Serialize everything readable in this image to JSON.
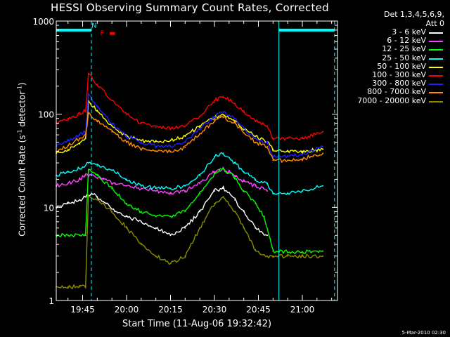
{
  "chart_data": {
    "type": "line",
    "title": "HESSI Observing Summary Count Rates, Corrected",
    "xlabel": "Start Time (11-Aug-06 19:32:42)",
    "ylabel": "Corrected Count Rate (s-1 detector-1)",
    "ylabel_parts": {
      "main": "Corrected Count Rate (s",
      "sup1": "-1",
      "mid": " detector",
      "sup2": "-1",
      "end": ")"
    },
    "y_scale": "log",
    "ylim": [
      1,
      1000
    ],
    "xlim": [
      "19:36",
      "21:12"
    ],
    "x_ticks": [
      "19:45",
      "20:00",
      "20:15",
      "20:30",
      "20:45",
      "21:00"
    ],
    "y_ticks": [
      "1",
      "10",
      "100",
      "1000"
    ],
    "legend_header": [
      "Det 1,3,4,5,6,9,",
      "Att 0"
    ],
    "legend_position": "right",
    "series": [
      {
        "name": "3 - 6 keV",
        "color": "#ffffff",
        "x": [
          "19:36",
          "19:40",
          "19:44",
          "19:46",
          "19:48",
          "19:50",
          "19:53",
          "19:56",
          "20:00",
          "20:05",
          "20:10",
          "20:15",
          "20:20",
          "20:25",
          "20:30",
          "20:33",
          "20:37",
          "20:40",
          "20:44",
          "20:48"
        ],
        "y": [
          10,
          11,
          12,
          13,
          14,
          13,
          11,
          9,
          8,
          7,
          6,
          5,
          6,
          9,
          15,
          16,
          12,
          9,
          6,
          5
        ]
      },
      {
        "name": "6 - 12 keV",
        "color": "#ff40ff",
        "x": [
          "19:36",
          "19:40",
          "19:44",
          "19:46",
          "19:48",
          "19:52",
          "19:56",
          "20:00",
          "20:05",
          "20:10",
          "20:15",
          "20:20",
          "20:25",
          "20:30",
          "20:33",
          "20:37",
          "20:40",
          "20:44",
          "20:48"
        ],
        "y": [
          17,
          18,
          20,
          22,
          22,
          20,
          18,
          17,
          16,
          15,
          14,
          15,
          18,
          24,
          26,
          22,
          19,
          17,
          15
        ]
      },
      {
        "name": "12 - 25 keV",
        "color": "#00ff00",
        "x": [
          "19:36",
          "19:40",
          "19:44",
          "19:46",
          "19:47",
          "19:50",
          "19:55",
          "20:00",
          "20:05",
          "20:10",
          "20:15",
          "20:20",
          "20:25",
          "20:30",
          "20:33",
          "20:37",
          "20:40",
          "20:44",
          "20:47",
          "20:50",
          "21:00",
          "21:07"
        ],
        "y": [
          5,
          5,
          5,
          5,
          25,
          22,
          16,
          11,
          9,
          8,
          8,
          9,
          14,
          23,
          26,
          21,
          15,
          11,
          8,
          3.4,
          3.3,
          3.4
        ]
      },
      {
        "name": "25 - 50 keV",
        "color": "#00ffff",
        "x": [
          "19:36",
          "19:40",
          "19:44",
          "19:47",
          "19:50",
          "19:55",
          "20:00",
          "20:05",
          "20:10",
          "20:15",
          "20:20",
          "20:25",
          "20:30",
          "20:33",
          "20:37",
          "20:40",
          "20:44",
          "20:48",
          "20:50",
          "20:55",
          "21:00",
          "21:07"
        ],
        "y": [
          22,
          24,
          26,
          30,
          28,
          25,
          20,
          17,
          16,
          16,
          17,
          22,
          35,
          38,
          30,
          24,
          20,
          18,
          14,
          14,
          15,
          17
        ]
      },
      {
        "name": "50 - 100 keV",
        "color": "#ffff00",
        "x": [
          "19:36",
          "19:40",
          "19:44",
          "19:46",
          "19:47",
          "19:50",
          "19:55",
          "20:00",
          "20:05",
          "20:10",
          "20:15",
          "20:20",
          "20:25",
          "20:30",
          "20:33",
          "20:37",
          "20:40",
          "20:44",
          "20:48",
          "20:50",
          "20:55",
          "21:00",
          "21:07"
        ],
        "y": [
          38,
          42,
          48,
          55,
          140,
          110,
          75,
          58,
          52,
          52,
          52,
          58,
          75,
          92,
          98,
          85,
          70,
          58,
          50,
          42,
          40,
          40,
          42
        ]
      },
      {
        "name": "100 - 300 keV",
        "color": "#ff0000",
        "x": [
          "19:36",
          "19:40",
          "19:44",
          "19:46",
          "19:47",
          "19:50",
          "19:55",
          "20:00",
          "20:05",
          "20:10",
          "20:15",
          "20:20",
          "20:25",
          "20:30",
          "20:33",
          "20:37",
          "20:40",
          "20:44",
          "20:48",
          "20:50",
          "20:55",
          "21:00",
          "21:07"
        ],
        "y": [
          80,
          90,
          100,
          110,
          270,
          210,
          140,
          100,
          80,
          72,
          70,
          74,
          95,
          140,
          155,
          130,
          105,
          85,
          75,
          55,
          55,
          55,
          65
        ]
      },
      {
        "name": "300 - 800 keV",
        "color": "#2020ff",
        "x": [
          "19:36",
          "19:40",
          "19:44",
          "19:46",
          "19:47",
          "19:50",
          "19:55",
          "20:00",
          "20:05",
          "20:10",
          "20:15",
          "20:20",
          "20:25",
          "20:30",
          "20:33",
          "20:37",
          "20:40",
          "20:44",
          "20:48",
          "20:50",
          "20:55",
          "21:00",
          "21:07"
        ],
        "y": [
          45,
          52,
          60,
          65,
          160,
          120,
          80,
          58,
          50,
          45,
          45,
          50,
          70,
          95,
          105,
          90,
          70,
          55,
          50,
          35,
          36,
          37,
          45
        ]
      },
      {
        "name": "800 - 7000 keV",
        "color": "#ff8c00",
        "x": [
          "19:36",
          "19:40",
          "19:44",
          "19:46",
          "19:47",
          "19:50",
          "19:55",
          "20:00",
          "20:05",
          "20:10",
          "20:15",
          "20:20",
          "20:25",
          "20:30",
          "20:33",
          "20:37",
          "20:40",
          "20:44",
          "20:48",
          "20:50",
          "20:55",
          "21:00",
          "21:07"
        ],
        "y": [
          40,
          46,
          55,
          60,
          100,
          85,
          65,
          50,
          42,
          40,
          40,
          44,
          62,
          85,
          92,
          80,
          63,
          50,
          45,
          32,
          32,
          33,
          38
        ]
      },
      {
        "name": "7000 - 20000 keV",
        "color": "#8b8b00",
        "x": [
          "19:36",
          "19:40",
          "19:44",
          "19:46",
          "19:47",
          "19:50",
          "19:55",
          "20:00",
          "20:05",
          "20:10",
          "20:15",
          "20:20",
          "20:25",
          "20:30",
          "20:33",
          "20:37",
          "20:40",
          "20:44",
          "20:48",
          "20:50",
          "20:55",
          "21:00",
          "21:07"
        ],
        "y": [
          1.4,
          1.4,
          1.4,
          1.4,
          13,
          12,
          9,
          6,
          4,
          3,
          2.5,
          3,
          6,
          11,
          13,
          9,
          6,
          3.5,
          3,
          3,
          3,
          3,
          3
        ]
      }
    ],
    "attenuator_bars": [
      {
        "color": "#00ffff",
        "x_start": "19:36",
        "x_end": "19:48",
        "y": 800
      },
      {
        "color": "#00ffff",
        "x_start": "20:52",
        "x_end": "21:11",
        "y": 800
      }
    ],
    "night_lines": [
      "19:48",
      "21:11"
    ],
    "saa_line": "20:52",
    "markers": [
      {
        "text": "N",
        "color": "#00ffff",
        "x": "19:48",
        "y": 850
      },
      {
        "text": "F",
        "color": "#ff0000",
        "x": "19:51",
        "y": 700
      },
      {
        "text": "▬",
        "color": "#ff0000",
        "x": "19:54",
        "y": 700
      }
    ]
  },
  "footer_text": "5-Mar-2010 02:30"
}
